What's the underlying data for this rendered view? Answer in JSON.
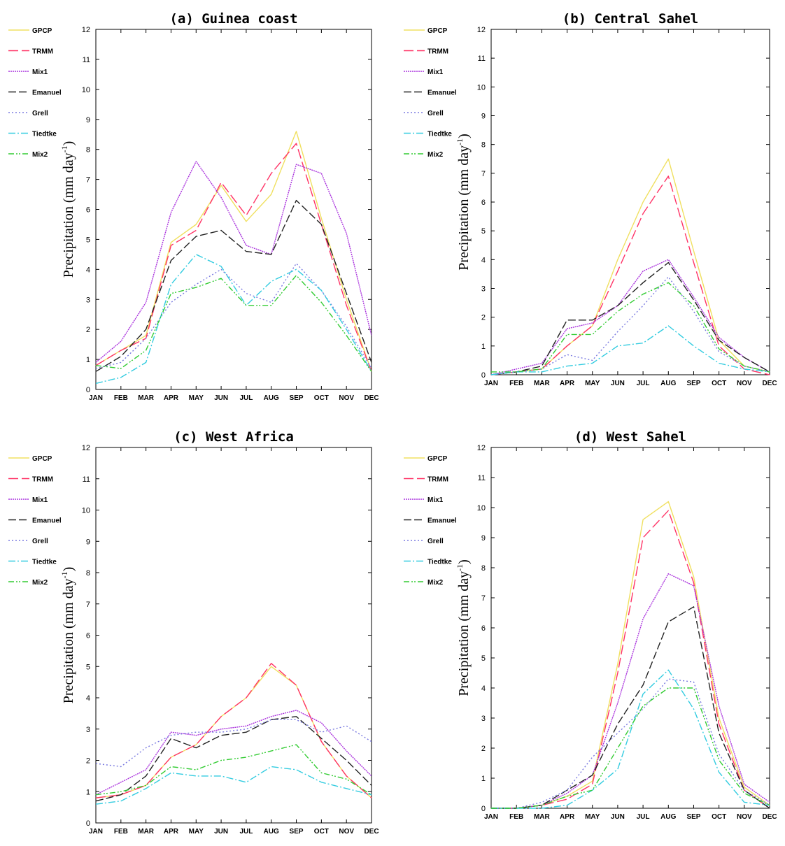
{
  "chart_data": [
    {
      "type": "line",
      "title": "(a) Guinea coast",
      "ylabel_main": "Precipitation (mm day",
      "ylabel_sup": "-1",
      "ylabel_close": ")",
      "ylim": [
        0,
        12
      ],
      "legend_position": "left",
      "categories": [
        "JAN",
        "FEB",
        "MAR",
        "APR",
        "MAY",
        "JUN",
        "JUL",
        "AUG",
        "SEP",
        "OCT",
        "NOV",
        "DEC"
      ],
      "series": [
        {
          "name": "GPCP",
          "values": [
            0.8,
            1.3,
            1.8,
            4.9,
            5.5,
            6.8,
            5.6,
            6.5,
            8.6,
            5.7,
            3.0,
            0.6
          ]
        },
        {
          "name": "TRMM",
          "values": [
            0.8,
            1.3,
            1.7,
            4.8,
            5.3,
            6.9,
            5.8,
            7.2,
            8.2,
            5.5,
            2.8,
            0.6
          ]
        },
        {
          "name": "Mix1",
          "values": [
            0.9,
            1.6,
            2.9,
            5.9,
            7.6,
            6.4,
            4.8,
            4.5,
            7.5,
            7.2,
            5.2,
            1.8
          ]
        },
        {
          "name": "Emanuel",
          "values": [
            0.6,
            1.1,
            2.0,
            4.3,
            5.1,
            5.3,
            4.6,
            4.5,
            6.3,
            5.5,
            3.2,
            0.9
          ]
        },
        {
          "name": "Grell",
          "values": [
            0.7,
            0.9,
            1.7,
            2.9,
            3.5,
            4.0,
            3.2,
            2.9,
            4.2,
            3.3,
            2.1,
            0.7
          ]
        },
        {
          "name": "Tiedtke",
          "values": [
            0.2,
            0.4,
            0.9,
            3.5,
            4.5,
            4.1,
            2.8,
            3.6,
            4.0,
            3.3,
            2.0,
            0.6
          ]
        },
        {
          "name": "Mix2",
          "values": [
            0.8,
            0.7,
            1.3,
            3.2,
            3.4,
            3.7,
            2.8,
            2.8,
            3.8,
            2.9,
            1.8,
            0.6
          ]
        }
      ]
    },
    {
      "type": "line",
      "title": "(b) Central Sahel",
      "ylabel_main": "Precipitation (mm day",
      "ylabel_sup": "-1",
      "ylabel_close": ")",
      "ylim": [
        0,
        12
      ],
      "legend_position": "left",
      "categories": [
        "JAN",
        "FEB",
        "MAR",
        "APR",
        "MAY",
        "JUN",
        "JUL",
        "AUG",
        "SEP",
        "OCT",
        "NOV",
        "DEC"
      ],
      "series": [
        {
          "name": "GPCP",
          "values": [
            0.0,
            0.1,
            0.2,
            1.0,
            1.7,
            4.0,
            6.0,
            7.5,
            4.3,
            1.2,
            0.3,
            0.1
          ]
        },
        {
          "name": "TRMM",
          "values": [
            0.0,
            0.1,
            0.2,
            1.0,
            1.7,
            3.6,
            5.6,
            6.9,
            3.9,
            1.0,
            0.2,
            0.0
          ]
        },
        {
          "name": "Mix1",
          "values": [
            0.0,
            0.2,
            0.4,
            1.6,
            1.8,
            2.4,
            3.6,
            4.0,
            2.7,
            1.3,
            0.6,
            0.1
          ]
        },
        {
          "name": "Emanuel",
          "values": [
            0.0,
            0.1,
            0.3,
            1.9,
            1.9,
            2.4,
            3.2,
            3.9,
            2.6,
            1.2,
            0.6,
            0.1
          ]
        },
        {
          "name": "Grell",
          "values": [
            0.0,
            0.1,
            0.2,
            0.7,
            0.5,
            1.5,
            2.4,
            3.4,
            2.2,
            0.8,
            0.3,
            0.1
          ]
        },
        {
          "name": "Tiedtke",
          "values": [
            0.0,
            0.1,
            0.1,
            0.3,
            0.4,
            1.0,
            1.1,
            1.7,
            1.0,
            0.4,
            0.2,
            0.1
          ]
        },
        {
          "name": "Mix2",
          "values": [
            0.1,
            0.1,
            0.2,
            1.4,
            1.4,
            2.2,
            2.8,
            3.2,
            2.4,
            0.9,
            0.3,
            0.1
          ]
        }
      ]
    },
    {
      "type": "line",
      "title": "(c) West Africa",
      "ylabel_main": "Precipitation (mm day",
      "ylabel_sup": "-1",
      "ylabel_close": ")",
      "ylim": [
        0,
        12
      ],
      "legend_position": "left",
      "categories": [
        "JAN",
        "FEB",
        "MAR",
        "APR",
        "MAY",
        "JUN",
        "JUL",
        "AUG",
        "SEP",
        "OCT",
        "NOV",
        "DEC"
      ],
      "series": [
        {
          "name": "GPCP",
          "values": [
            0.8,
            0.9,
            1.2,
            2.1,
            2.5,
            3.4,
            4.0,
            5.0,
            4.4,
            2.6,
            1.5,
            0.8
          ]
        },
        {
          "name": "TRMM",
          "values": [
            0.8,
            0.9,
            1.2,
            2.1,
            2.5,
            3.4,
            4.0,
            5.1,
            4.4,
            2.6,
            1.5,
            0.8
          ]
        },
        {
          "name": "Mix1",
          "values": [
            0.9,
            1.3,
            1.7,
            2.9,
            2.8,
            3.0,
            3.1,
            3.4,
            3.6,
            3.2,
            2.3,
            1.5
          ]
        },
        {
          "name": "Emanuel",
          "values": [
            0.7,
            0.9,
            1.5,
            2.7,
            2.4,
            2.8,
            2.9,
            3.3,
            3.4,
            2.7,
            2.0,
            1.2
          ]
        },
        {
          "name": "Grell",
          "values": [
            1.9,
            1.8,
            2.4,
            2.8,
            2.9,
            2.9,
            3.0,
            3.3,
            3.3,
            2.9,
            3.1,
            2.6
          ]
        },
        {
          "name": "Tiedtke",
          "values": [
            0.6,
            0.7,
            1.1,
            1.6,
            1.5,
            1.5,
            1.3,
            1.8,
            1.7,
            1.3,
            1.1,
            0.9
          ]
        },
        {
          "name": "Mix2",
          "values": [
            0.9,
            1.0,
            1.2,
            1.8,
            1.7,
            2.0,
            2.1,
            2.3,
            2.5,
            1.6,
            1.4,
            0.9
          ]
        }
      ]
    },
    {
      "type": "line",
      "title": "(d) West Sahel",
      "ylabel_main": "Precipitation (mm day",
      "ylabel_sup": "-1",
      "ylabel_close": ")",
      "ylim": [
        0,
        12
      ],
      "legend_position": "left",
      "categories": [
        "JAN",
        "FEB",
        "MAR",
        "APR",
        "MAY",
        "JUN",
        "JUL",
        "AUG",
        "SEP",
        "OCT",
        "NOV",
        "DEC"
      ],
      "series": [
        {
          "name": "GPCP",
          "values": [
            0.0,
            0.0,
            0.1,
            0.4,
            0.9,
            4.8,
            9.6,
            10.2,
            7.7,
            3.0,
            0.7,
            0.1
          ]
        },
        {
          "name": "TRMM",
          "values": [
            0.0,
            0.0,
            0.1,
            0.3,
            0.8,
            4.5,
            9.0,
            9.9,
            7.5,
            2.8,
            0.6,
            0.0
          ]
        },
        {
          "name": "Mix1",
          "values": [
            0.0,
            0.0,
            0.1,
            0.5,
            1.1,
            3.5,
            6.3,
            7.8,
            7.4,
            3.4,
            0.8,
            0.2
          ]
        },
        {
          "name": "Emanuel",
          "values": [
            0.0,
            0.0,
            0.1,
            0.6,
            1.1,
            2.8,
            4.1,
            6.2,
            6.7,
            2.5,
            0.6,
            0.0
          ]
        },
        {
          "name": "Grell",
          "values": [
            0.0,
            0.0,
            0.2,
            0.6,
            1.7,
            2.5,
            3.3,
            4.3,
            4.2,
            1.8,
            0.6,
            0.1
          ]
        },
        {
          "name": "Tiedtke",
          "values": [
            0.0,
            0.0,
            0.0,
            0.1,
            0.6,
            1.3,
            3.8,
            4.6,
            3.3,
            1.2,
            0.2,
            0.1
          ]
        },
        {
          "name": "Mix2",
          "values": [
            0.0,
            0.0,
            0.1,
            0.4,
            0.6,
            2.0,
            3.4,
            4.0,
            4.0,
            1.6,
            0.5,
            0.1
          ]
        }
      ]
    }
  ],
  "series_styles": [
    {
      "name": "GPCP",
      "color": "#f0e060",
      "dash": ""
    },
    {
      "name": "TRMM",
      "color": "#ff3366",
      "dash": "14,5"
    },
    {
      "name": "Mix1",
      "color": "#aa33dd",
      "dash": "2,1"
    },
    {
      "name": "Emanuel",
      "color": "#222222",
      "dash": "11,4"
    },
    {
      "name": "Grell",
      "color": "#7a7ae0",
      "dash": "2,3"
    },
    {
      "name": "Tiedtke",
      "color": "#33cce0",
      "dash": "10,3,2,3"
    },
    {
      "name": "Mix2",
      "color": "#33cc33",
      "dash": "8,3,2,2,2,3"
    }
  ]
}
